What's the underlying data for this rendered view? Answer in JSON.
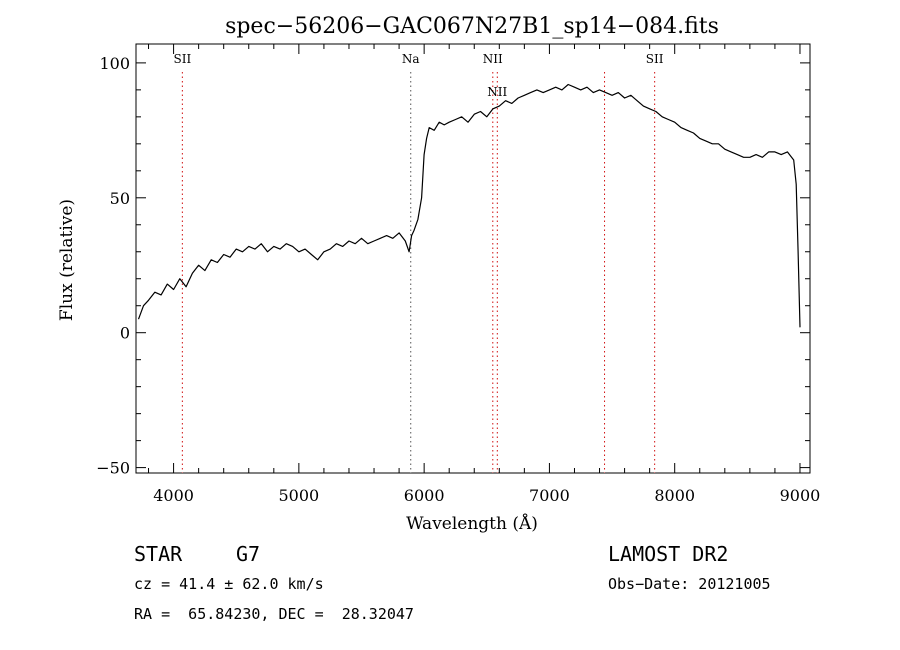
{
  "chart_data": {
    "type": "line",
    "title": "spec−56206−GAC067N27B1_sp14−084.fits",
    "xlabel": "Wavelength (Å)",
    "ylabel": "Flux (relative)",
    "xlim": [
      3700,
      9080
    ],
    "ylim": [
      -52,
      107
    ],
    "x_ticks": [
      {
        "value": 4000,
        "label": "4000"
      },
      {
        "value": 5000,
        "label": "5000"
      },
      {
        "value": 6000,
        "label": "6000"
      },
      {
        "value": 7000,
        "label": "7000"
      },
      {
        "value": 8000,
        "label": "8000"
      },
      {
        "value": 9000,
        "label": "9000"
      }
    ],
    "y_ticks": [
      {
        "value": -50,
        "label": "−50"
      },
      {
        "value": 0,
        "label": "0"
      },
      {
        "value": 50,
        "label": "50"
      },
      {
        "value": 100,
        "label": "100"
      }
    ],
    "lines": [
      {
        "x": 4070,
        "label": "SII",
        "color": "#d01010"
      },
      {
        "x": 5893,
        "label": "Na",
        "color": "#555555"
      },
      {
        "x": 6548,
        "label": "NII",
        "color": "#d01010"
      },
      {
        "x": 6584,
        "label": "NII",
        "color": "#d01010"
      },
      {
        "x": 7440,
        "label": "",
        "color": "#d01010"
      },
      {
        "x": 7840,
        "label": "SII",
        "color": "#d01010"
      }
    ],
    "series": [
      {
        "color": "#000000",
        "x": [
          3720,
          3760,
          3800,
          3850,
          3900,
          3950,
          4000,
          4050,
          4100,
          4150,
          4200,
          4250,
          4300,
          4350,
          4400,
          4450,
          4500,
          4550,
          4600,
          4650,
          4700,
          4750,
          4800,
          4850,
          4900,
          4950,
          5000,
          5050,
          5100,
          5150,
          5200,
          5250,
          5300,
          5350,
          5400,
          5450,
          5500,
          5550,
          5600,
          5650,
          5700,
          5750,
          5800,
          5850,
          5880,
          5900,
          5920,
          5950,
          5980,
          6000,
          6020,
          6040,
          6080,
          6120,
          6160,
          6200,
          6250,
          6300,
          6350,
          6400,
          6450,
          6500,
          6550,
          6600,
          6650,
          6700,
          6750,
          6800,
          6850,
          6900,
          6950,
          7000,
          7050,
          7100,
          7150,
          7200,
          7250,
          7300,
          7350,
          7400,
          7450,
          7500,
          7550,
          7600,
          7650,
          7700,
          7750,
          7800,
          7850,
          7900,
          7950,
          8000,
          8050,
          8100,
          8150,
          8200,
          8250,
          8300,
          8350,
          8400,
          8450,
          8500,
          8550,
          8600,
          8650,
          8700,
          8750,
          8800,
          8850,
          8900,
          8950,
          8970,
          8985,
          9000
        ],
        "y": [
          5,
          10,
          12,
          15,
          14,
          18,
          16,
          20,
          17,
          22,
          25,
          23,
          27,
          26,
          29,
          28,
          31,
          30,
          32,
          31,
          33,
          30,
          32,
          31,
          33,
          32,
          30,
          31,
          29,
          27,
          30,
          31,
          33,
          32,
          34,
          33,
          35,
          33,
          34,
          35,
          36,
          35,
          37,
          34,
          30,
          36,
          38,
          42,
          50,
          66,
          72,
          76,
          75,
          78,
          77,
          78,
          79,
          80,
          78,
          81,
          82,
          80,
          83,
          84,
          86,
          85,
          87,
          88,
          89,
          90,
          89,
          90,
          91,
          90,
          92,
          91,
          90,
          91,
          89,
          90,
          89,
          88,
          89,
          87,
          88,
          86,
          84,
          83,
          82,
          80,
          79,
          78,
          76,
          75,
          74,
          72,
          71,
          70,
          70,
          68,
          67,
          66,
          65,
          65,
          66,
          65,
          67,
          67,
          66,
          67,
          64,
          55,
          30,
          2
        ]
      }
    ]
  },
  "footer": {
    "object_type": "STAR",
    "subclass": "G7",
    "redshift": "cz = 41.4 ± 62.0 km/s",
    "coords": "RA =  65.84230, DEC =  28.32047",
    "survey": "LAMOST DR2",
    "obs_date": "Obs−Date: 20121005"
  }
}
